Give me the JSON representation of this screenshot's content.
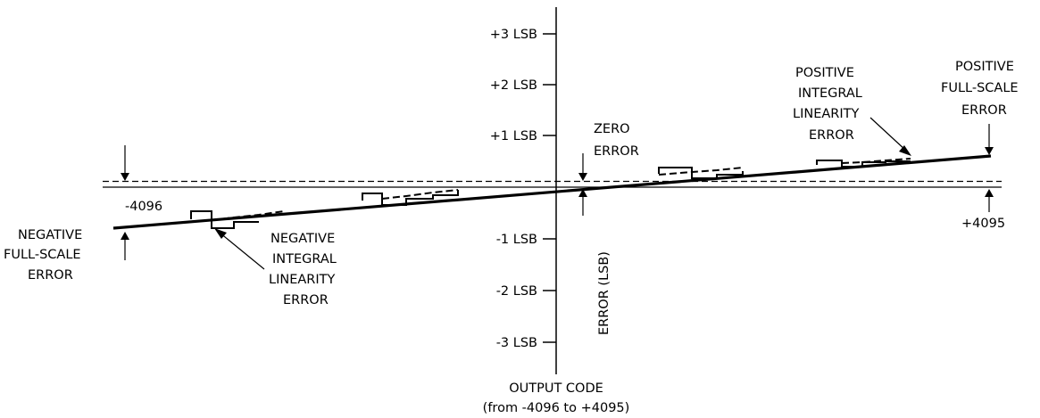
{
  "y_ticks": [
    {
      "key": "p3",
      "label": "+3 LSB"
    },
    {
      "key": "p2",
      "label": "+2 LSB"
    },
    {
      "key": "p1",
      "label": "+1 LSB"
    },
    {
      "key": "m1",
      "label": "-1 LSB"
    },
    {
      "key": "m2",
      "label": "-2 LSB"
    },
    {
      "key": "m3",
      "label": "-3 LSB"
    }
  ],
  "axis": {
    "y_label": "ERROR (LSB)",
    "x_label_line1": "OUTPUT CODE",
    "x_label_line2": "(from -4096 to +4095)",
    "x_min_label": "-4096",
    "x_max_label": "+4095"
  },
  "annotations": {
    "zero_error": [
      "ZERO",
      "ERROR"
    ],
    "positive_integral": [
      "POSITIVE",
      "INTEGRAL",
      "LINEARITY",
      "ERROR"
    ],
    "positive_full_scale": [
      "POSITIVE",
      "FULL-SCALE",
      "ERROR"
    ],
    "negative_full_scale": [
      "NEGATIVE",
      "FULL-SCALE",
      "ERROR"
    ],
    "negative_integral": [
      "NEGATIVE",
      "INTEGRAL",
      "LINEARITY",
      "ERROR"
    ]
  }
}
